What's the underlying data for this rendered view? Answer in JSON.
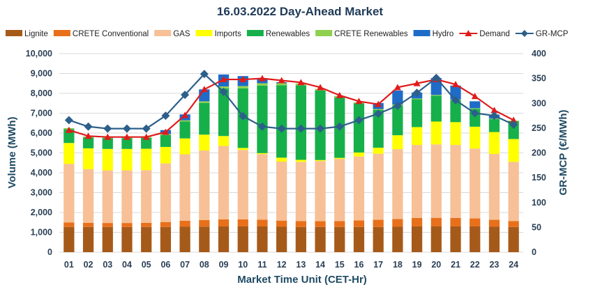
{
  "chart_data": {
    "type": "bar",
    "title": "16.03.2022  Day-Ahead Market",
    "xlabel": "Market Time Unit (CET-Hr)",
    "ylabel": "Volume (MWh)",
    "y2label": "GR-MCP (€/MWh)",
    "ylim": [
      0,
      10000
    ],
    "y2lim": [
      0,
      400
    ],
    "yticks": [
      "0",
      "1,000",
      "2,000",
      "3,000",
      "4,000",
      "5,000",
      "6,000",
      "7,000",
      "8,000",
      "9,000",
      "10,000"
    ],
    "y2ticks": [
      "0",
      "50",
      "100",
      "150",
      "200",
      "250",
      "300",
      "350",
      "400"
    ],
    "legend_position": "top",
    "categories": [
      "01",
      "02",
      "03",
      "04",
      "05",
      "06",
      "07",
      "08",
      "09",
      "10",
      "11",
      "12",
      "13",
      "14",
      "15",
      "16",
      "17",
      "18",
      "19",
      "20",
      "21",
      "22",
      "23",
      "24"
    ],
    "stacked_series": [
      {
        "name": "Lignite",
        "color": "#a65a1a",
        "values": [
          1270,
          1270,
          1270,
          1270,
          1270,
          1270,
          1280,
          1290,
          1300,
          1300,
          1300,
          1280,
          1270,
          1270,
          1270,
          1270,
          1270,
          1280,
          1300,
          1300,
          1300,
          1300,
          1280,
          1270
        ]
      },
      {
        "name": "CRETE Conventional",
        "color": "#e8701a",
        "values": [
          230,
          210,
          200,
          200,
          210,
          250,
          300,
          330,
          350,
          350,
          340,
          310,
          300,
          290,
          300,
          330,
          360,
          390,
          420,
          430,
          420,
          400,
          350,
          300
        ]
      },
      {
        "name": "GAS",
        "color": "#f7c096",
        "values": [
          2950,
          2700,
          2650,
          2650,
          2650,
          2950,
          3350,
          3500,
          3700,
          3500,
          3300,
          2970,
          2980,
          3030,
          3130,
          3220,
          3330,
          3520,
          3680,
          3700,
          3680,
          3520,
          3320,
          2980
        ]
      },
      {
        "name": "Imports",
        "color": "#ffff00",
        "values": [
          1050,
          1050,
          1080,
          1080,
          1080,
          830,
          800,
          800,
          500,
          100,
          50,
          200,
          100,
          50,
          50,
          200,
          300,
          700,
          900,
          1150,
          1150,
          1100,
          1100,
          1150
        ]
      },
      {
        "name": "Renewables",
        "color": "#16b04b",
        "values": [
          700,
          550,
          550,
          550,
          550,
          600,
          850,
          1600,
          2400,
          3000,
          3400,
          3650,
          3750,
          3500,
          3050,
          2480,
          1900,
          1500,
          1400,
          1300,
          1100,
          900,
          650,
          900
        ]
      },
      {
        "name": "CRETE Renewables",
        "color": "#8fd14f",
        "values": [
          50,
          50,
          50,
          50,
          50,
          50,
          60,
          80,
          100,
          120,
          120,
          100,
          100,
          80,
          70,
          50,
          50,
          50,
          40,
          40,
          40,
          30,
          30,
          30
        ]
      },
      {
        "name": "Hydro",
        "color": "#1e6cc8",
        "values": [
          0,
          0,
          0,
          0,
          0,
          200,
          300,
          600,
          600,
          500,
          250,
          50,
          0,
          0,
          0,
          0,
          300,
          700,
          300,
          850,
          700,
          350,
          200,
          0
        ]
      }
    ],
    "line_series": [
      {
        "name": "Demand",
        "axis": "left",
        "color": "#e01b1b",
        "marker": "triangle",
        "values": [
          6150,
          5850,
          5800,
          5800,
          5800,
          6050,
          6900,
          8200,
          8700,
          8700,
          8750,
          8650,
          8550,
          8300,
          7900,
          7600,
          7450,
          8300,
          8500,
          8700,
          8450,
          7850,
          7150,
          6650
        ]
      },
      {
        "name": "GR-MCP",
        "axis": "right",
        "color": "#2c5f8a",
        "marker": "diamond",
        "values": [
          266,
          253,
          249,
          249,
          249,
          275,
          317,
          359,
          323,
          274,
          253,
          249,
          249,
          249,
          253,
          266,
          279,
          295,
          321,
          351,
          306,
          280,
          275,
          257
        ]
      }
    ]
  }
}
